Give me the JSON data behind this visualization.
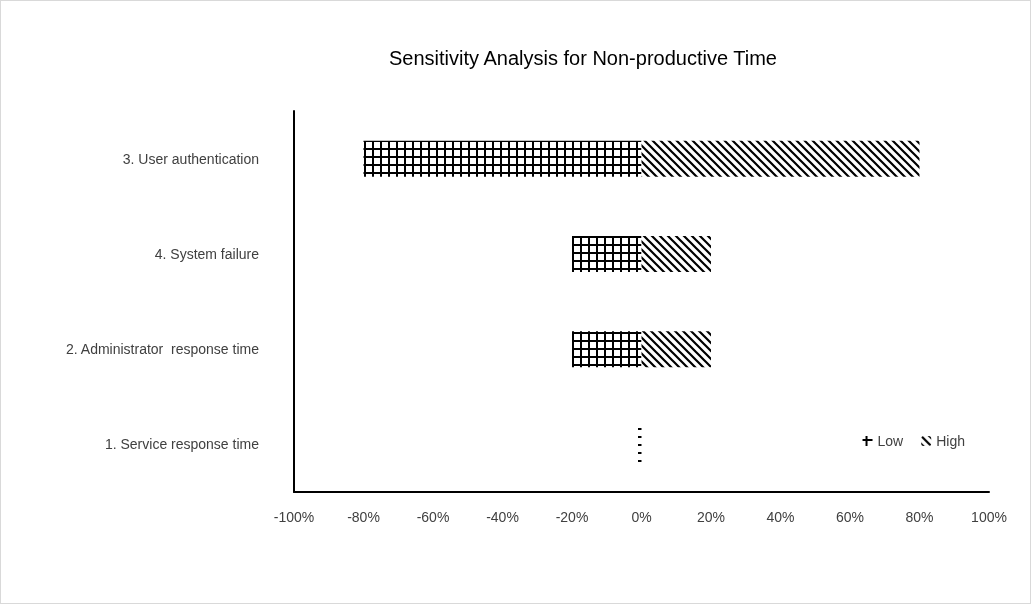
{
  "chart_data": {
    "type": "bar",
    "orientation": "horizontal",
    "title": "Sensitivity Analysis for Non-productive Time",
    "categories": [
      "3. User authentication",
      "4. System failure",
      "2. Administrator  response time",
      "1. Service response time"
    ],
    "series": [
      {
        "name": "Low",
        "color": "#000000",
        "values": [
          -80,
          -20,
          -20,
          -1
        ]
      },
      {
        "name": "High",
        "color": "#000000",
        "values": [
          80,
          20,
          20,
          0
        ]
      }
    ],
    "xlim": [
      -100,
      100
    ],
    "xticks": [
      {
        "value": -100,
        "label": "-100%"
      },
      {
        "value": -80,
        "label": "-80%"
      },
      {
        "value": -60,
        "label": "-60%"
      },
      {
        "value": -40,
        "label": "-40%"
      },
      {
        "value": -20,
        "label": "-20%"
      },
      {
        "value": 0,
        "label": "0%"
      },
      {
        "value": 20,
        "label": "20%"
      },
      {
        "value": 40,
        "label": "40%"
      },
      {
        "value": 60,
        "label": "60%"
      },
      {
        "value": 80,
        "label": "80%"
      },
      {
        "value": 100,
        "label": "100%"
      }
    ],
    "stacked": true,
    "grid": false,
    "legend": "bottom right"
  }
}
